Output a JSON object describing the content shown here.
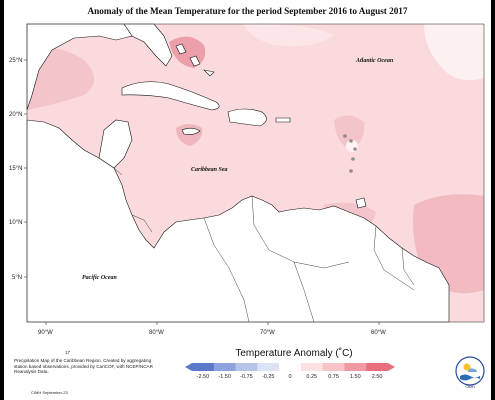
{
  "title": "Anomaly of the Mean Temperature for the period September 2016 to August 2017",
  "lat_labels": [
    "25°N",
    "20°N",
    "15°N",
    "10°N",
    "5°N"
  ],
  "lon_labels": [
    "90°W",
    "80°W",
    "70°W",
    "60°W"
  ],
  "ocean_labels": {
    "atlantic": "Atlantic Ocean",
    "caribbean": "Caribbean Sea",
    "pacific": "Pacific Ocean"
  },
  "legend": {
    "title": "Temperature Anomaly (˚C)",
    "ticks": [
      "-2.50",
      "-1.50",
      "-0.75",
      "-0.25",
      "0",
      "0.25",
      "0.75",
      "1.50",
      "2.50"
    ],
    "colors": [
      "#5b79c8",
      "#8da3de",
      "#b6c4ea",
      "#dbe3f5",
      "#ffffff",
      "#fbe1e4",
      "#f6c3c8",
      "#ef9aa3",
      "#e8707d"
    ]
  },
  "note_number": "17",
  "note": "Precipitation Map of the Caribbean Region. Created by aggregating station based observations, provided by CariCOF, with NCEP/NCAR Reanalysis Data.",
  "credit": "CIMH September-23",
  "logo_text": "CIMH",
  "colors": {
    "anomaly_base": "#fadadd",
    "anomaly_warm": "#f2c3c8",
    "anomaly_hot": "#eba6ae",
    "land": "#ffffff"
  }
}
